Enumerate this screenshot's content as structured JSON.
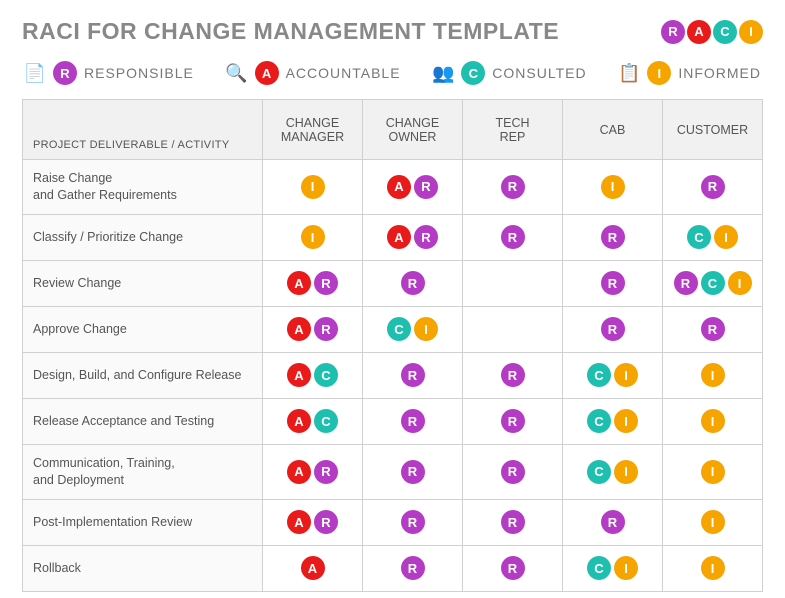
{
  "title": "RACI FOR CHANGE MANAGEMENT TEMPLATE",
  "colors": {
    "R": "#b43bc4",
    "A": "#e81a1a",
    "C": "#1fbfb0",
    "I": "#f5a400"
  },
  "raci_letters": [
    "R",
    "A",
    "C",
    "I"
  ],
  "legend": [
    {
      "icon": "📄",
      "letter": "R",
      "label": "RESPONSIBLE"
    },
    {
      "icon": "🔍",
      "letter": "A",
      "label": "ACCOUNTABLE"
    },
    {
      "icon": "👥",
      "letter": "C",
      "label": "CONSULTED"
    },
    {
      "icon": "📋",
      "letter": "I",
      "label": "INFORMED"
    }
  ],
  "row_header_label": "PROJECT DELIVERABLE / ACTIVITY",
  "roles": [
    "CHANGE MANAGER",
    "CHANGE OWNER",
    "TECH REP",
    "CAB",
    "CUSTOMER"
  ],
  "rows": [
    {
      "activity": "Raise Change\nand Gather Requirements",
      "cells": [
        [
          "I"
        ],
        [
          "A",
          "R"
        ],
        [
          "R"
        ],
        [
          "I"
        ],
        [
          "R"
        ]
      ]
    },
    {
      "activity": "Classify / Prioritize Change",
      "cells": [
        [
          "I"
        ],
        [
          "A",
          "R"
        ],
        [
          "R"
        ],
        [
          "R"
        ],
        [
          "C",
          "I"
        ]
      ]
    },
    {
      "activity": "Review Change",
      "cells": [
        [
          "A",
          "R"
        ],
        [
          "R"
        ],
        [],
        [
          "R"
        ],
        [
          "R",
          "C",
          "I"
        ]
      ]
    },
    {
      "activity": "Approve Change",
      "cells": [
        [
          "A",
          "R"
        ],
        [
          "C",
          "I"
        ],
        [],
        [
          "R"
        ],
        [
          "R"
        ]
      ]
    },
    {
      "activity": "Design, Build, and Configure Release",
      "cells": [
        [
          "A",
          "C"
        ],
        [
          "R"
        ],
        [
          "R"
        ],
        [
          "C",
          "I"
        ],
        [
          "I"
        ]
      ]
    },
    {
      "activity": "Release Acceptance and Testing",
      "cells": [
        [
          "A",
          "C"
        ],
        [
          "R"
        ],
        [
          "R"
        ],
        [
          "C",
          "I"
        ],
        [
          "I"
        ]
      ]
    },
    {
      "activity": "Communication, Training,\nand Deployment",
      "cells": [
        [
          "A",
          "R"
        ],
        [
          "R"
        ],
        [
          "R"
        ],
        [
          "C",
          "I"
        ],
        [
          "I"
        ]
      ]
    },
    {
      "activity": "Post-Implementation Review",
      "cells": [
        [
          "A",
          "R"
        ],
        [
          "R"
        ],
        [
          "R"
        ],
        [
          "R"
        ],
        [
          "I"
        ]
      ]
    },
    {
      "activity": "Rollback",
      "cells": [
        [
          "A"
        ],
        [
          "R"
        ],
        [
          "R"
        ],
        [
          "C",
          "I"
        ],
        [
          "I"
        ]
      ]
    }
  ]
}
